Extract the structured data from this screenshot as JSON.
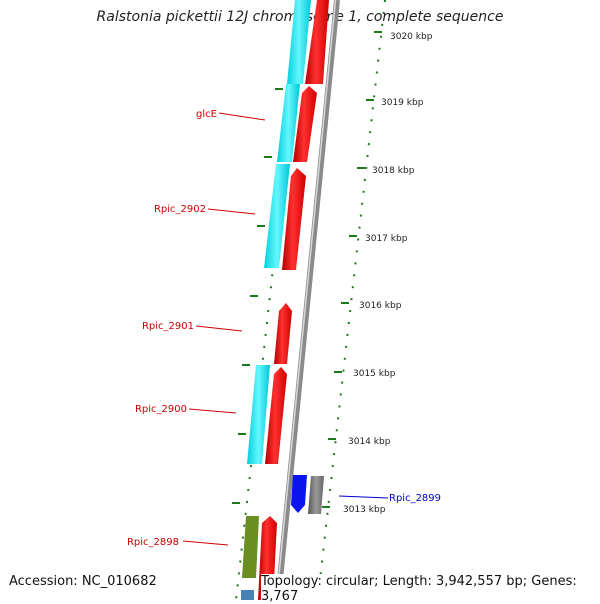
{
  "title": "Ralstonia pickettii 12J chromosome 1, complete sequence",
  "footer": {
    "accession": "Accession: NC_010682",
    "summary": "Topology: circular; Length: 3,942,557 bp; Genes: 3,767"
  },
  "ticks": [
    "3020 kbp",
    "3019 kbp",
    "3018 kbp",
    "3017 kbp",
    "3016 kbp",
    "3015 kbp",
    "3014 kbp",
    "3013 kbp"
  ],
  "labels": {
    "glcE": "glcE",
    "rpic_2902": "Rpic_2902",
    "rpic_2901": "Rpic_2901",
    "rpic_2900": "Rpic_2900",
    "rpic_2899": "Rpic_2899",
    "rpic_2898": "Rpic_2898"
  },
  "colors": {
    "cds": "#ff0000",
    "blast_hit": "#00e5ee",
    "reverse_gene": "#0000ee",
    "pseudo": "#777777",
    "other_gene": "#6b8e23",
    "backbone": "#8a8a8a",
    "tick": "#1a7a1a",
    "label_red": "#cc0000",
    "label_blue": "#0000cc"
  }
}
